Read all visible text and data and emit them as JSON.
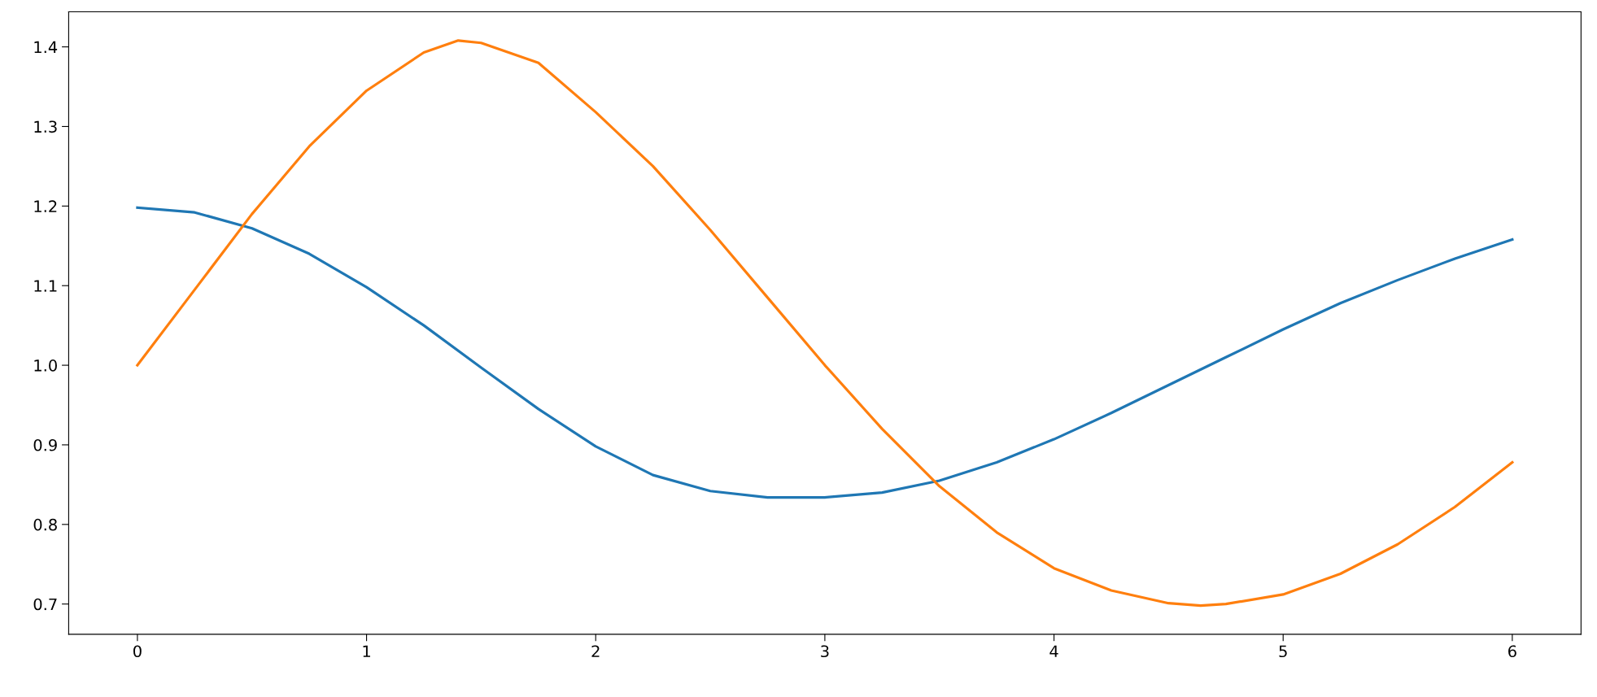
{
  "chart_data": {
    "type": "line",
    "xlim": [
      -0.3,
      6.3
    ],
    "ylim": [
      0.662,
      1.444
    ],
    "xticks": [
      0,
      1,
      2,
      3,
      4,
      5,
      6
    ],
    "yticks": [
      {
        "value": 0.7,
        "label": "0.7"
      },
      {
        "value": 0.8,
        "label": "0.8"
      },
      {
        "value": 0.9,
        "label": "0.9"
      },
      {
        "value": 1.0,
        "label": "1.0"
      },
      {
        "value": 1.1,
        "label": "1.1"
      },
      {
        "value": 1.2,
        "label": "1.2"
      },
      {
        "value": 1.3,
        "label": "1.3"
      },
      {
        "value": 1.4,
        "label": "1.4"
      }
    ],
    "grid": false,
    "legend": false,
    "marker": "none",
    "line_style": "solid",
    "series": [
      {
        "color": "#1f77b4",
        "x": [
          0,
          0.25,
          0.5,
          0.75,
          1,
          1.25,
          1.5,
          1.75,
          2,
          2.25,
          2.5,
          2.75,
          3,
          3.25,
          3.5,
          3.75,
          4,
          4.25,
          4.5,
          4.75,
          5,
          5.25,
          5.5,
          5.75,
          6
        ],
        "values": [
          1.198,
          1.192,
          1.172,
          1.14,
          1.098,
          1.05,
          0.997,
          0.945,
          0.898,
          0.862,
          0.842,
          0.834,
          0.834,
          0.84,
          0.855,
          0.878,
          0.907,
          0.94,
          0.975,
          1.01,
          1.045,
          1.078,
          1.107,
          1.134,
          1.158
        ]
      },
      {
        "color": "#ff7f0e",
        "x": [
          0,
          0.25,
          0.5,
          0.75,
          1,
          1.25,
          1.4,
          1.5,
          1.75,
          2,
          2.25,
          2.5,
          2.75,
          3,
          3.25,
          3.5,
          3.75,
          4,
          4.25,
          4.5,
          4.64,
          4.75,
          5,
          5.25,
          5.5,
          5.75,
          6
        ],
        "values": [
          1.0,
          1.095,
          1.19,
          1.275,
          1.345,
          1.393,
          1.408,
          1.405,
          1.38,
          1.318,
          1.25,
          1.17,
          1.085,
          1.0,
          0.92,
          0.848,
          0.79,
          0.745,
          0.717,
          0.701,
          0.698,
          0.7,
          0.712,
          0.738,
          0.775,
          0.822,
          0.878
        ]
      }
    ]
  }
}
